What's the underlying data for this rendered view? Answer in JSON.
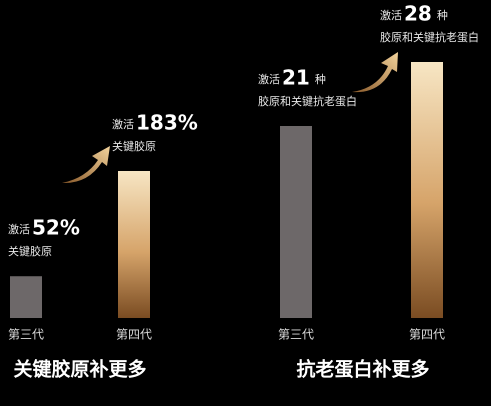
{
  "chart_data": [
    {
      "type": "bar",
      "title": "关键胶原补更多",
      "categories": [
        "第三代",
        "第四代"
      ],
      "values": [
        52,
        183
      ],
      "value_labels": [
        "52%",
        "183%"
      ],
      "label_prefix": "激活",
      "notes": [
        "关键胶原",
        "关键胶原"
      ],
      "colors": [
        "#6d6869",
        "gold"
      ]
    },
    {
      "type": "bar",
      "title": "抗老蛋白补更多",
      "categories": [
        "第三代",
        "第四代"
      ],
      "values": [
        21,
        28
      ],
      "value_labels": [
        "21",
        "28"
      ],
      "label_prefix": "激活",
      "unit": "种",
      "notes": [
        "胶原和关键抗老蛋白",
        "胶原和关键抗老蛋白"
      ],
      "colors": [
        "#6d6869",
        "gold"
      ]
    }
  ]
}
